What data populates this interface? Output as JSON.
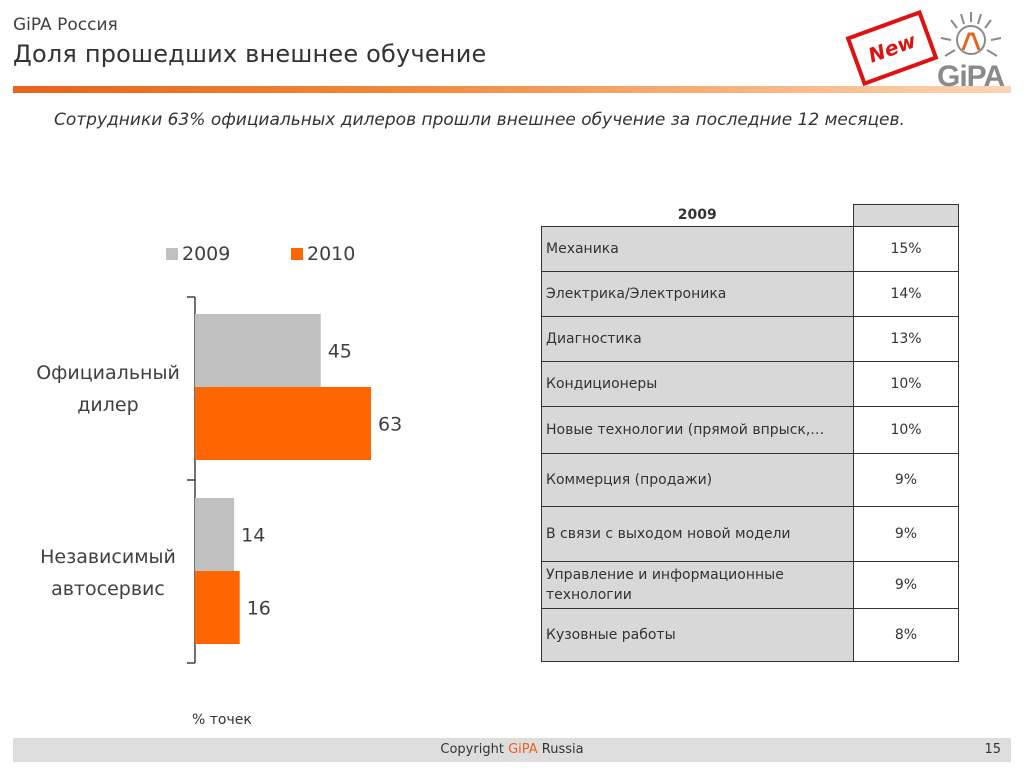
{
  "header": {
    "brand": "GiPA Россия",
    "title": "Доля прошедших внешнее обучение",
    "badge": "New",
    "logo": "GiPA"
  },
  "subtitle": "Сотрудники 63% официальных дилеров прошли внешнее обучение за последние 12 месяцев.",
  "chart_data": {
    "type": "bar",
    "orientation": "horizontal",
    "categories": [
      "Официальный дилер",
      "Независимый автосервис"
    ],
    "series": [
      {
        "name": "2009",
        "values": [
          45,
          14
        ],
        "color": "#c0c0c0"
      },
      {
        "name": "2010",
        "values": [
          63,
          16
        ],
        "color": "#ff6600"
      }
    ],
    "xlim": [
      0,
      100
    ],
    "legend_position": "top",
    "grid": false,
    "unit_note": "% точек"
  },
  "table": {
    "header": "2009",
    "rows": [
      {
        "label": "Механика",
        "value": "15%"
      },
      {
        "label": "Электрика/Электроника",
        "value": "14%"
      },
      {
        "label": "Диагностика",
        "value": "13%"
      },
      {
        "label": "Кондиционеры",
        "value": "10%"
      },
      {
        "label": "Новые технологии (прямой впрыск,…",
        "value": "10%"
      },
      {
        "label": "Коммерция (продажи)",
        "value": "9%"
      },
      {
        "label": "В связи с выходом новой модели",
        "value": "9%"
      },
      {
        "label": "Управление и информационные технологии",
        "value": "9%"
      },
      {
        "label": "Кузовные работы",
        "value": "8%"
      }
    ]
  },
  "footer": {
    "copyright_prefix": "Copyright",
    "copyright_brand": "GiPA",
    "copyright_suffix": "Russia",
    "page": "15"
  },
  "colors": {
    "accent": "#e8631c",
    "stamp_red": "#e01111",
    "series_2009": "#c0c0c0",
    "series_2010": "#ff6600"
  }
}
